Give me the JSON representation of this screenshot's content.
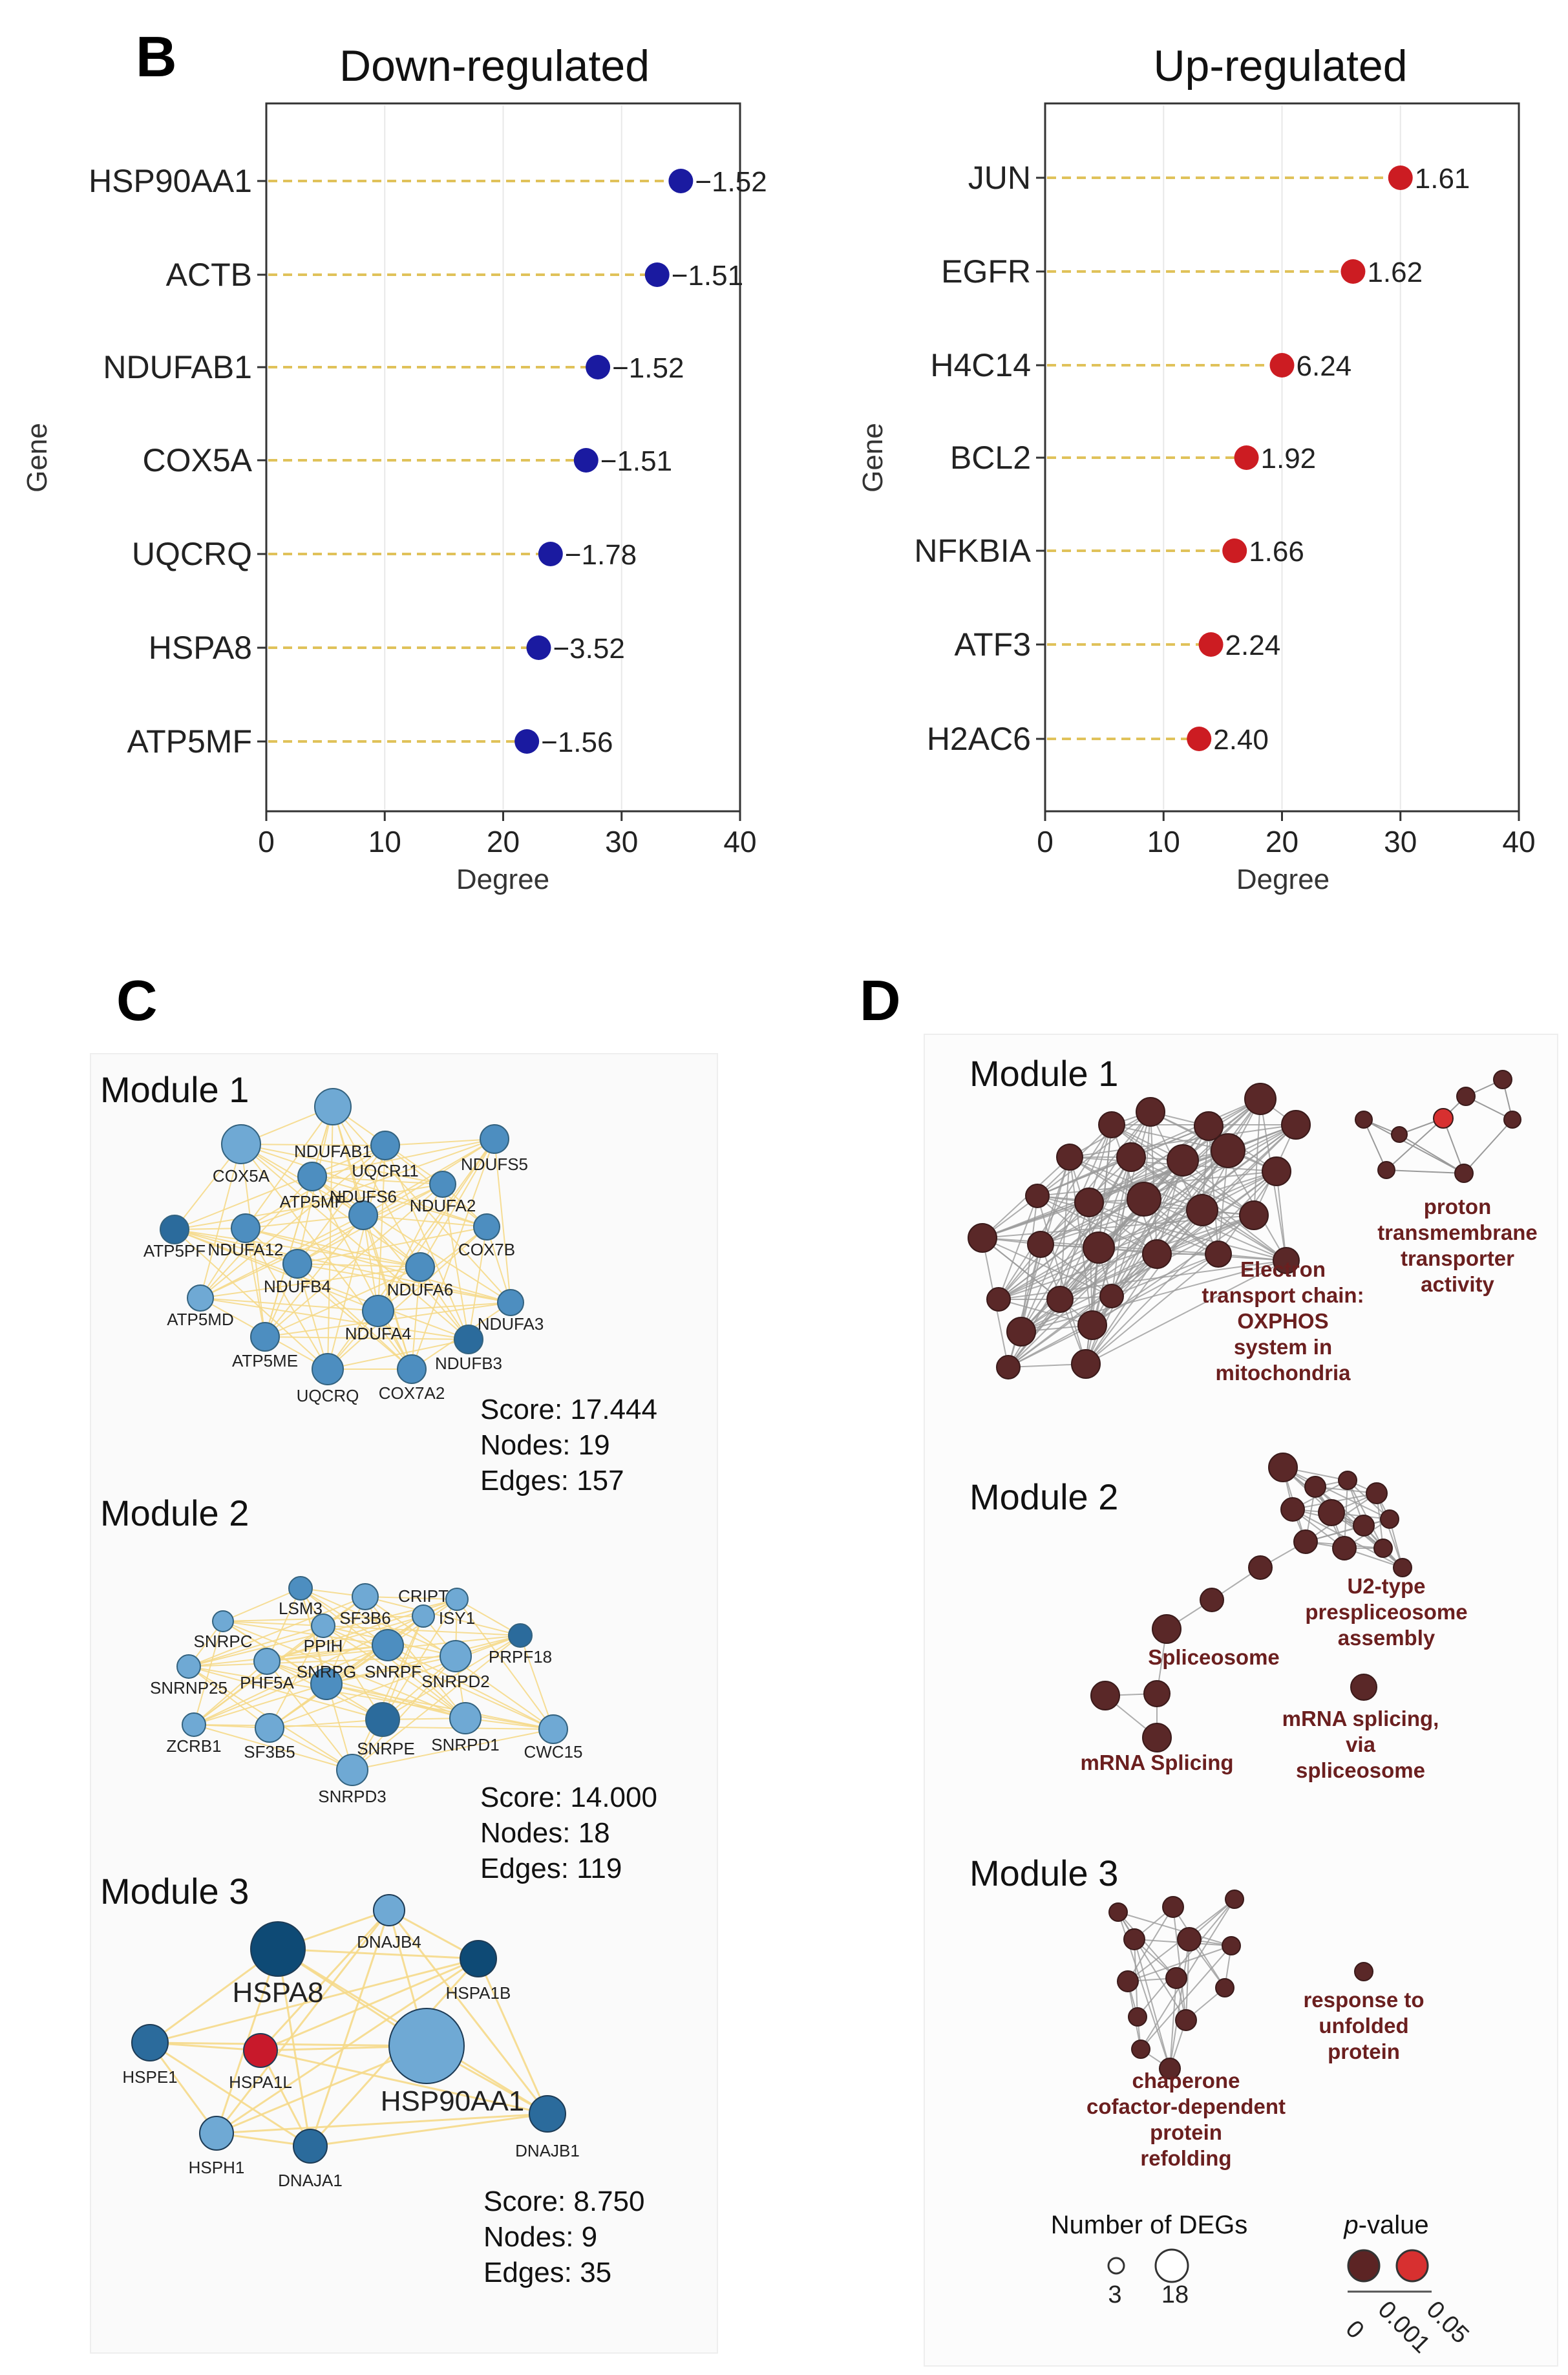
{
  "figure": {
    "panel_labels": [
      "B",
      "C",
      "D"
    ]
  },
  "chart_data": [
    {
      "type": "scatter",
      "title": "Down-regulated",
      "xlabel": "Degree",
      "ylabel": "Gene",
      "xlim": [
        0,
        40
      ],
      "xticks": [
        "0",
        "10",
        "20",
        "30",
        "40"
      ],
      "categories": [
        "HSP90AA1",
        "ACTB",
        "NDUFAB1",
        "COX5A",
        "UQCRQ",
        "HSPA8",
        "ATP5MF"
      ],
      "values": [
        35,
        33,
        28,
        27,
        24,
        23,
        22
      ],
      "point_labels": [
        "−1.52",
        "−1.51",
        "−1.52",
        "−1.51",
        "−1.78",
        "−3.52",
        "−1.56"
      ],
      "color": "#1a1aa0"
    },
    {
      "type": "scatter",
      "title": "Up-regulated",
      "xlabel": "Degree",
      "ylabel": "Gene",
      "xlim": [
        0,
        40
      ],
      "xticks": [
        "0",
        "10",
        "20",
        "30",
        "40"
      ],
      "categories": [
        "JUN",
        "EGFR",
        "H4C14",
        "BCL2",
        "NFKBIA",
        "ATF3",
        "H2AC6"
      ],
      "values": [
        30,
        26,
        20,
        17,
        16,
        14,
        13
      ],
      "point_labels": [
        "1.61",
        "1.62",
        "6.24",
        "1.92",
        "1.66",
        "2.24",
        "2.40"
      ],
      "color": "#cc1c22"
    }
  ],
  "panel_c": {
    "modules": [
      {
        "title": "Module 1",
        "score": "Score: 17.444",
        "nodes": "Nodes: 19",
        "edges": "Edges: 157",
        "node_labels": [
          "NDUFAB1",
          "COX5A",
          "UQCR11",
          "NDUFS5",
          "ATP5MF",
          "NDUFA2",
          "ATP5PF",
          "NDUFA12",
          "NDUFS6",
          "COX7B",
          "NDUFB4",
          "NDUFA6",
          "ATP5MD",
          "NDUFA4",
          "NDUFA3",
          "ATP5ME",
          "NDUFB3",
          "UQCRQ",
          "COX7A2"
        ]
      },
      {
        "title": "Module 2",
        "score": "Score: 14.000",
        "nodes": "Nodes: 18",
        "edges": "Edges: 119",
        "node_labels": [
          "LSM3",
          "SF3B6",
          "ISY1",
          "CRIPT",
          "SNRPC",
          "PPIH",
          "PRPF18",
          "PHF5A",
          "SNRPF",
          "SNRNP25",
          "SNRPD2",
          "SNRPG",
          "ZCRB1",
          "SF3B5",
          "SNRPE",
          "SNRPD1",
          "CWC15",
          "SNRPD3"
        ]
      },
      {
        "title": "Module 3",
        "score": "Score: 8.750",
        "nodes": "Nodes: 9",
        "edges": "Edges: 35",
        "node_labels": [
          "DNAJB4",
          "HSPA8",
          "HSPA1B",
          "HSPE1",
          "HSPA1L",
          "HSP90AA1",
          "DNAJB1",
          "HSPH1",
          "DNAJA1"
        ]
      }
    ]
  },
  "panel_d": {
    "modules": [
      {
        "title": "Module 1",
        "terms": [
          "Electron",
          "transport chain:",
          "OXPHOS",
          "system in",
          "mitochondria",
          "proton",
          "transmembrane",
          "transporter",
          "activity"
        ]
      },
      {
        "title": "Module 2",
        "terms": [
          "U2-type",
          "prespliceosome",
          "assembly",
          "Spliceosome",
          "mRNA splicing,",
          "via",
          "spliceosome",
          "mRNA Splicing"
        ]
      },
      {
        "title": "Module 3",
        "terms": [
          "response to",
          "unfolded",
          "protein",
          "chaperone",
          "cofactor-dependent",
          "protein",
          "refolding"
        ]
      }
    ],
    "legend": {
      "size_title": "Number of DEGs",
      "size_min": "3",
      "size_max": "18",
      "pvalue_prefix": "p",
      "pvalue_suffix": "-value",
      "pvalue_ticks": [
        "0",
        "0.001",
        "0.05"
      ],
      "dark_color": "#5c2424",
      "light_color": "#d73030"
    }
  }
}
